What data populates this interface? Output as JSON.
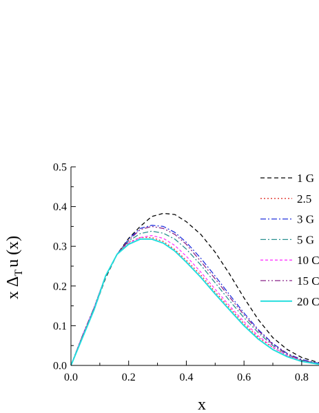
{
  "chart_data": {
    "type": "line",
    "title": "",
    "xlabel": "x",
    "ylabel": {
      "prefix": "x Δ",
      "sub": "T",
      "suffix": "u (x)"
    },
    "xlim": [
      0.0,
      0.86
    ],
    "ylim": [
      0.0,
      0.5
    ],
    "xticks": [
      "0.0",
      "0.2",
      "0.4",
      "0.6",
      "0.8"
    ],
    "yticks": [
      "0.0",
      "0.1",
      "0.2",
      "0.3",
      "0.4",
      "0.5"
    ],
    "grid": false,
    "legend_position": "top-right",
    "x": [
      0.0,
      0.04,
      0.08,
      0.12,
      0.16,
      0.2,
      0.24,
      0.28,
      0.32,
      0.36,
      0.4,
      0.45,
      0.5,
      0.55,
      0.6,
      0.65,
      0.7,
      0.75,
      0.8,
      0.86
    ],
    "series": [
      {
        "name": "1 G",
        "color": "#000000",
        "dash": "6,4",
        "width": 1.3,
        "values": [
          0.0,
          0.07,
          0.14,
          0.22,
          0.28,
          0.32,
          0.35,
          0.375,
          0.383,
          0.38,
          0.362,
          0.33,
          0.285,
          0.23,
          0.17,
          0.115,
          0.07,
          0.04,
          0.02,
          0.007
        ]
      },
      {
        "name": "2.5",
        "color": "#e0302a",
        "dash": "2,3",
        "width": 1.3,
        "values": [
          0.0,
          0.075,
          0.145,
          0.225,
          0.28,
          0.31,
          0.322,
          0.322,
          0.312,
          0.292,
          0.265,
          0.228,
          0.185,
          0.145,
          0.105,
          0.07,
          0.045,
          0.025,
          0.012,
          0.004
        ]
      },
      {
        "name": "3 G",
        "color": "#2233dd",
        "dash": "8,3,2,3",
        "width": 1.3,
        "values": [
          0.0,
          0.075,
          0.145,
          0.225,
          0.28,
          0.318,
          0.345,
          0.353,
          0.35,
          0.335,
          0.31,
          0.27,
          0.225,
          0.178,
          0.132,
          0.09,
          0.055,
          0.03,
          0.015,
          0.005
        ]
      },
      {
        "name": "5 G",
        "color": "#2a9090",
        "dash": "8,3,2,3",
        "width": 1.3,
        "values": [
          0.0,
          0.075,
          0.145,
          0.225,
          0.28,
          0.313,
          0.332,
          0.338,
          0.333,
          0.318,
          0.293,
          0.253,
          0.208,
          0.163,
          0.12,
          0.082,
          0.05,
          0.028,
          0.013,
          0.004
        ]
      },
      {
        "name": "10 C",
        "color": "#ff33ff",
        "dash": "4,3",
        "width": 1.3,
        "values": [
          0.0,
          0.075,
          0.145,
          0.225,
          0.28,
          0.308,
          0.322,
          0.327,
          0.32,
          0.302,
          0.275,
          0.235,
          0.192,
          0.15,
          0.11,
          0.074,
          0.046,
          0.025,
          0.011,
          0.004
        ]
      },
      {
        "name": "15 C",
        "color": "#882288",
        "dash": "8,3,2,3,2,3",
        "width": 1.3,
        "values": [
          0.0,
          0.075,
          0.145,
          0.225,
          0.28,
          0.315,
          0.342,
          0.35,
          0.345,
          0.33,
          0.305,
          0.262,
          0.218,
          0.172,
          0.127,
          0.087,
          0.053,
          0.029,
          0.013,
          0.004
        ]
      },
      {
        "name": "20 C",
        "color": "#22dddd",
        "dash": "",
        "width": 2,
        "values": [
          0.0,
          0.07,
          0.14,
          0.225,
          0.28,
          0.305,
          0.318,
          0.318,
          0.308,
          0.288,
          0.26,
          0.222,
          0.18,
          0.14,
          0.1,
          0.066,
          0.04,
          0.022,
          0.01,
          0.003
        ]
      }
    ]
  }
}
